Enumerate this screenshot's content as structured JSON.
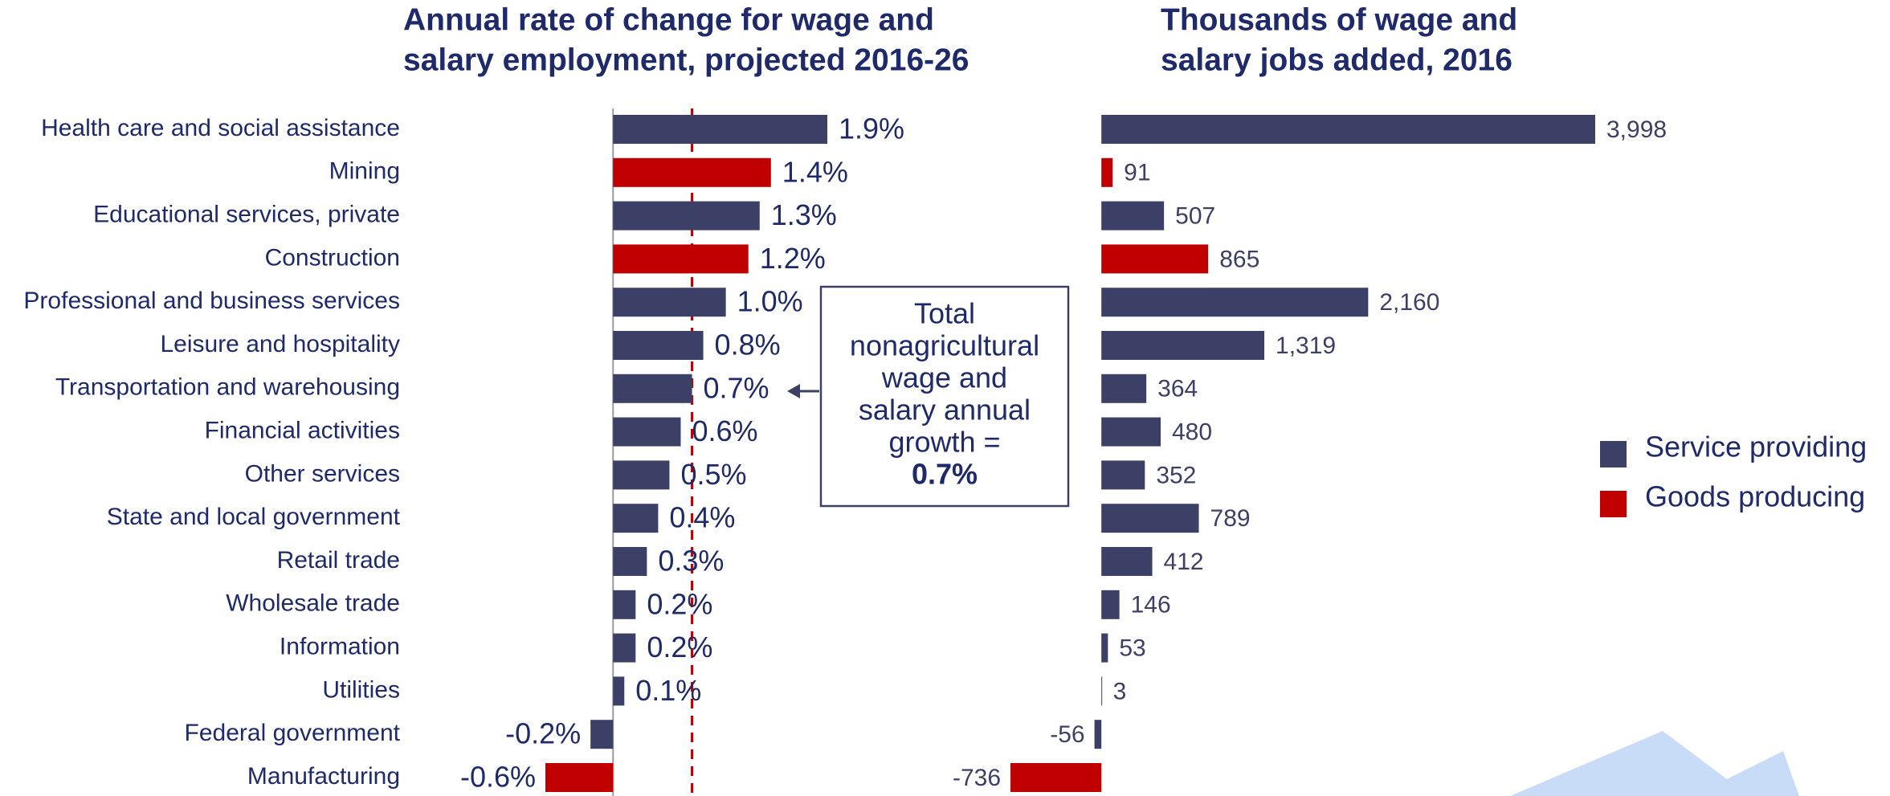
{
  "chart_data": [
    {
      "type": "bar",
      "orientation": "horizontal",
      "title": [
        "Annual rate of change for wage and",
        "salary employment, projected 2016-26"
      ],
      "categories": [
        "Health care and social assistance",
        "Mining",
        "Educational services, private",
        "Construction",
        "Professional and business services",
        "Leisure and hospitality",
        "Transportation and warehousing",
        "Financial activities",
        "Other services",
        "State and local government",
        "Retail trade",
        "Wholesale trade",
        "Information",
        "Utilities",
        "Federal government",
        "Manufacturing"
      ],
      "values": [
        1.9,
        1.4,
        1.3,
        1.2,
        1.0,
        0.8,
        0.7,
        0.6,
        0.5,
        0.4,
        0.3,
        0.2,
        0.2,
        0.1,
        -0.2,
        -0.6
      ],
      "value_labels": [
        "1.9%",
        "1.4%",
        "1.3%",
        "1.2%",
        "1.0%",
        "0.8%",
        "0.7%",
        "0.6%",
        "0.5%",
        "0.4%",
        "0.3%",
        "0.2%",
        "0.2%",
        "0.1%",
        "-0.2%",
        "-0.6%"
      ],
      "colors": [
        "#3d4066",
        "#c00000",
        "#3d4066",
        "#c00000",
        "#3d4066",
        "#3d4066",
        "#3d4066",
        "#3d4066",
        "#3d4066",
        "#3d4066",
        "#3d4066",
        "#3d4066",
        "#3d4066",
        "#3d4066",
        "#3d4066",
        "#c00000"
      ],
      "xlim": [
        -0.6,
        1.9
      ],
      "reference_line": {
        "value": 0.7,
        "color": "#c00000"
      },
      "annotation": {
        "lines": [
          "Total",
          "nonagricultural",
          "wage and",
          "salary annual",
          "growth ="
        ],
        "emphasis": "0.7%"
      }
    },
    {
      "type": "bar",
      "orientation": "horizontal",
      "title": [
        "Thousands of wage and",
        "salary jobs added, 2016"
      ],
      "values": [
        3998,
        91,
        507,
        865,
        2160,
        1319,
        364,
        480,
        352,
        789,
        412,
        146,
        53,
        3,
        -56,
        -736
      ],
      "value_labels": [
        "3,998",
        "91",
        "507",
        "865",
        "2,160",
        "1,319",
        "364",
        "480",
        "352",
        "789",
        "412",
        "146",
        "53",
        "3",
        "-56",
        "-736"
      ],
      "colors": [
        "#3d4066",
        "#c00000",
        "#3d4066",
        "#c00000",
        "#3d4066",
        "#3d4066",
        "#3d4066",
        "#3d4066",
        "#3d4066",
        "#3d4066",
        "#3d4066",
        "#3d4066",
        "#3d4066",
        "#3d4066",
        "#3d4066",
        "#c00000"
      ],
      "xlim": [
        -736,
        3998
      ],
      "legend": [
        {
          "name": "Service providing",
          "color": "#3d4066"
        },
        {
          "name": "Goods producing",
          "color": "#c00000"
        }
      ]
    }
  ]
}
